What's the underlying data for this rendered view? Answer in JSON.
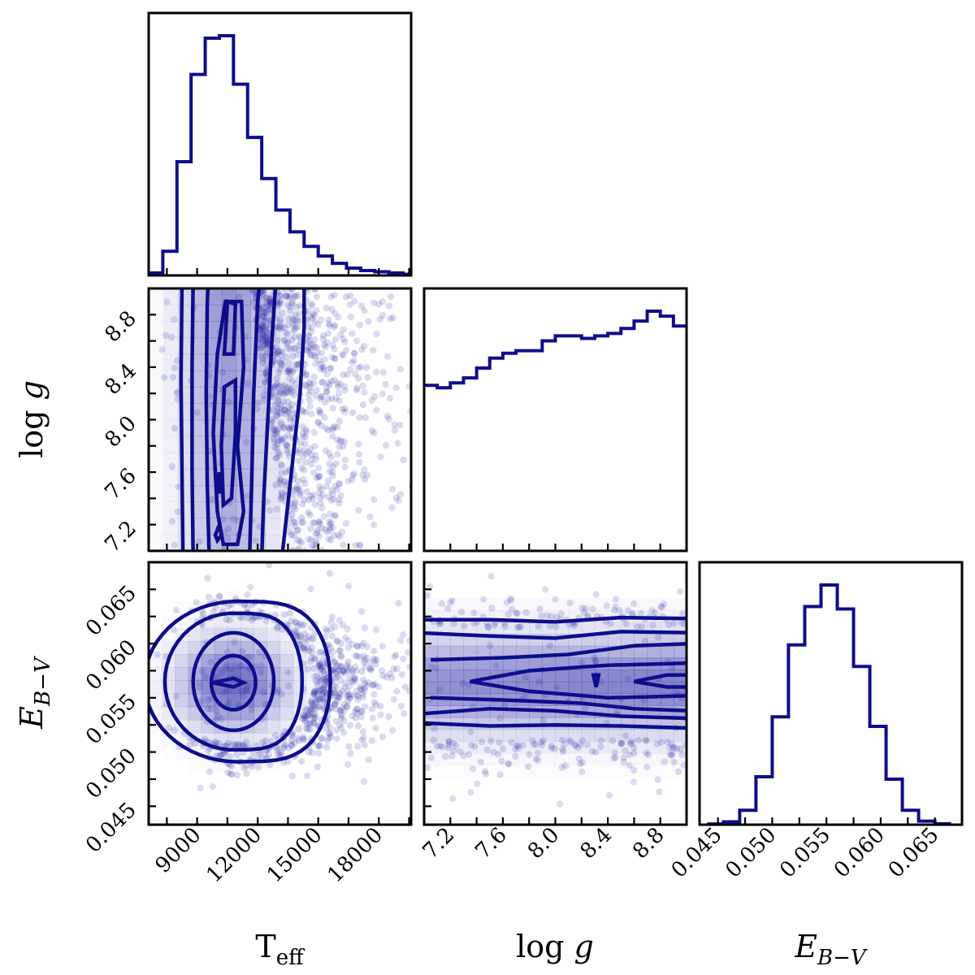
{
  "chart_data": {
    "type": "corner",
    "colors": {
      "main": "#0d0d8c",
      "fill": "#4b4bb4",
      "point": "#1f1fa0"
    },
    "parameters": [
      {
        "key": "teff",
        "label": "T_eff",
        "label_main": "T",
        "label_sub": "eff",
        "range": [
          6600,
          19600
        ],
        "ticks": [
          9000,
          12000,
          15000,
          18000
        ],
        "ticklabels": [
          "9000",
          "12000",
          "15000",
          "18000"
        ]
      },
      {
        "key": "logg",
        "label": "log g",
        "label_main": "log ",
        "label_italic": "g",
        "range": [
          7.0,
          9.0
        ],
        "ticks": [
          7.2,
          7.6,
          8.0,
          8.4,
          8.8
        ],
        "ticklabels": [
          "7.2",
          "7.6",
          "8.0",
          "8.4",
          "8.8"
        ]
      },
      {
        "key": "ebv",
        "label": "E_{B-V}",
        "label_main": "E",
        "label_sub": "B−V",
        "range": [
          0.0433,
          0.0675
        ],
        "ticks": [
          0.045,
          0.05,
          0.055,
          0.06,
          0.065
        ],
        "ticklabels": [
          "0.045",
          "0.050",
          "0.055",
          "0.060",
          "0.065"
        ]
      }
    ],
    "histograms": [
      {
        "param": "teff",
        "bin_edges": [
          6600,
          7300,
          8000,
          8700,
          9400,
          10100,
          10800,
          11500,
          12200,
          12900,
          13600,
          14300,
          15000,
          15700,
          16400,
          17100,
          17800,
          18500,
          19200,
          19600
        ],
        "counts": [
          0.01,
          0.1,
          0.47,
          0.83,
          0.98,
          0.99,
          0.79,
          0.57,
          0.4,
          0.27,
          0.18,
          0.12,
          0.08,
          0.05,
          0.03,
          0.02,
          0.015,
          0.01,
          0.005
        ]
      },
      {
        "param": "logg",
        "bin_edges": [
          7.0,
          7.1,
          7.2,
          7.3,
          7.4,
          7.5,
          7.6,
          7.7,
          7.8,
          7.9,
          8.0,
          8.1,
          8.2,
          8.3,
          8.4,
          8.5,
          8.6,
          8.7,
          8.8,
          8.9,
          9.0
        ],
        "counts": [
          0.67,
          0.66,
          0.68,
          0.7,
          0.74,
          0.78,
          0.8,
          0.81,
          0.81,
          0.85,
          0.87,
          0.87,
          0.86,
          0.87,
          0.88,
          0.9,
          0.93,
          0.97,
          0.95,
          0.91
        ]
      },
      {
        "param": "ebv",
        "bin_edges": [
          0.044,
          0.0455,
          0.047,
          0.0485,
          0.05,
          0.0515,
          0.053,
          0.0545,
          0.056,
          0.0575,
          0.059,
          0.0605,
          0.062,
          0.0635,
          0.065,
          0.0665
        ],
        "counts": [
          0.003,
          0.012,
          0.06,
          0.2,
          0.45,
          0.75,
          0.91,
          1.0,
          0.9,
          0.66,
          0.41,
          0.19,
          0.06,
          0.015,
          0.004
        ]
      }
    ],
    "scatter_panels": [
      {
        "x": "teff",
        "y": "logg"
      },
      {
        "x": "teff",
        "y": "ebv"
      },
      {
        "x": "logg",
        "y": "ebv"
      }
    ]
  }
}
